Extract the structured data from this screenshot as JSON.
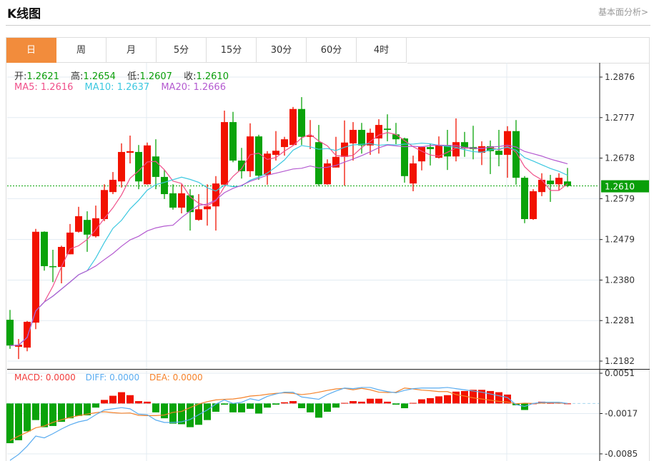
{
  "header": {
    "title": "K线图",
    "link": "基本面分析>"
  },
  "tabs": [
    {
      "label": "日",
      "active": true
    },
    {
      "label": "周"
    },
    {
      "label": "月"
    },
    {
      "label": "5分"
    },
    {
      "label": "15分"
    },
    {
      "label": "30分"
    },
    {
      "label": "60分"
    },
    {
      "label": "4时"
    }
  ],
  "ohlc_info": {
    "open_label": "开:",
    "open": "1.2621",
    "high_label": "高:",
    "high": "1.2654",
    "low_label": "低:",
    "low": "1.2607",
    "close_label": "收:",
    "close": "1.2610"
  },
  "ma_info": {
    "ma5": "MA5: 1.2616",
    "ma10": "MA10: 1.2637",
    "ma20": "MA20: 1.2666"
  },
  "macd_info": {
    "macd": "MACD: 0.0000",
    "diff": "DIFF: 0.0000",
    "dea": "DEA: 0.0000"
  },
  "colors": {
    "up": "#f21200",
    "down": "#0aa30a",
    "ma5": "#f0508a",
    "ma10": "#3cc8e0",
    "ma20": "#b45ad0",
    "diff": "#5aacf0",
    "dea": "#f5822a",
    "tab_active": "#f28c3c"
  },
  "chart_data": [
    {
      "type": "candlestick",
      "title": "K线图",
      "y_ticks": [
        "1.2876",
        "1.2777",
        "1.2678",
        "1.2579",
        "1.2479",
        "1.2380",
        "1.2281",
        "1.2182"
      ],
      "ylim": [
        1.2182,
        1.2876
      ],
      "last_price": "1.2610",
      "grid": true,
      "ohlc": [
        [
          1.2283,
          1.2307,
          1.2212,
          1.222
        ],
        [
          1.2217,
          1.2236,
          1.2187,
          1.2222
        ],
        [
          1.2215,
          1.228,
          1.2206,
          1.2278
        ],
        [
          1.2276,
          1.2505,
          1.226,
          1.2498
        ],
        [
          1.2498,
          1.2499,
          1.2403,
          1.2414
        ],
        [
          1.2414,
          1.2454,
          1.2375,
          1.2412
        ],
        [
          1.2412,
          1.2464,
          1.2372,
          1.2461
        ],
        [
          1.2443,
          1.2517,
          1.2443,
          1.2496
        ],
        [
          1.2498,
          1.2559,
          1.2496,
          1.2536
        ],
        [
          1.2527,
          1.2548,
          1.2449,
          1.2491
        ],
        [
          1.2487,
          1.2562,
          1.2484,
          1.2531
        ],
        [
          1.2529,
          1.2614,
          1.2524,
          1.26
        ],
        [
          1.2595,
          1.2644,
          1.259,
          1.2625
        ],
        [
          1.2621,
          1.2714,
          1.2606,
          1.2693
        ],
        [
          1.2691,
          1.2733,
          1.2665,
          1.2695
        ],
        [
          1.2693,
          1.271,
          1.2602,
          1.2621
        ],
        [
          1.2614,
          1.2716,
          1.2613,
          1.2709
        ],
        [
          1.2682,
          1.2724,
          1.2602,
          1.2632
        ],
        [
          1.2632,
          1.2649,
          1.2578,
          1.259
        ],
        [
          1.2592,
          1.2614,
          1.2552,
          1.2557
        ],
        [
          1.2557,
          1.2614,
          1.2543,
          1.2592
        ],
        [
          1.2587,
          1.2602,
          1.2501,
          1.2546
        ],
        [
          1.2527,
          1.259,
          1.2525,
          1.2553
        ],
        [
          1.2553,
          1.2614,
          1.2513,
          1.256
        ],
        [
          1.256,
          1.2634,
          1.2501,
          1.2616
        ],
        [
          1.2613,
          1.2794,
          1.2613,
          1.2766
        ],
        [
          1.2766,
          1.2791,
          1.2668,
          1.2672
        ],
        [
          1.2672,
          1.2703,
          1.2628,
          1.2646
        ],
        [
          1.2646,
          1.2763,
          1.2632,
          1.2731
        ],
        [
          1.2731,
          1.2735,
          1.2625,
          1.2635
        ],
        [
          1.2637,
          1.2695,
          1.2613,
          1.2689
        ],
        [
          1.2686,
          1.2744,
          1.2672,
          1.2696
        ],
        [
          1.2705,
          1.273,
          1.2684,
          1.2724
        ],
        [
          1.271,
          1.2803,
          1.271,
          1.2798
        ],
        [
          1.2798,
          1.2827,
          1.271,
          1.273
        ],
        [
          1.273,
          1.2771,
          1.27,
          1.2733
        ],
        [
          1.2717,
          1.2759,
          1.2609,
          1.2614
        ],
        [
          1.2614,
          1.2675,
          1.2613,
          1.2665
        ],
        [
          1.2655,
          1.273,
          1.2655,
          1.2681
        ],
        [
          1.2681,
          1.277,
          1.2611,
          1.2716
        ],
        [
          1.2714,
          1.2766,
          1.2672,
          1.2747
        ],
        [
          1.2747,
          1.2764,
          1.2689,
          1.2709
        ],
        [
          1.2709,
          1.275,
          1.2686,
          1.274
        ],
        [
          1.2726,
          1.2773,
          1.2689,
          1.2759
        ],
        [
          1.275,
          1.2785,
          1.2719,
          1.2747
        ],
        [
          1.2736,
          1.2764,
          1.2712,
          1.2724
        ],
        [
          1.2726,
          1.2728,
          1.2618,
          1.2634
        ],
        [
          1.2616,
          1.2684,
          1.2597,
          1.2665
        ],
        [
          1.267,
          1.2707,
          1.2648,
          1.2705
        ],
        [
          1.2705,
          1.2714,
          1.266,
          1.27
        ],
        [
          1.2679,
          1.2731,
          1.2677,
          1.2709
        ],
        [
          1.2709,
          1.2747,
          1.2649,
          1.2682
        ],
        [
          1.2682,
          1.2775,
          1.267,
          1.2717
        ],
        [
          1.2717,
          1.2742,
          1.2681,
          1.2703
        ],
        [
          1.2705,
          1.2757,
          1.2675,
          1.27
        ],
        [
          1.2691,
          1.2719,
          1.2661,
          1.2707
        ],
        [
          1.2707,
          1.2721,
          1.2639,
          1.2695
        ],
        [
          1.2696,
          1.2747,
          1.2658,
          1.2686
        ],
        [
          1.2686,
          1.2756,
          1.263,
          1.2744
        ],
        [
          1.2744,
          1.2771,
          1.2613,
          1.263
        ],
        [
          1.263,
          1.2634,
          1.2519,
          1.2529
        ],
        [
          1.2529,
          1.2602,
          1.2527,
          1.2597
        ],
        [
          1.2595,
          1.2641,
          1.2585,
          1.2625
        ],
        [
          1.2623,
          1.2637,
          1.2571,
          1.2614
        ],
        [
          1.2614,
          1.2641,
          1.2599,
          1.263
        ],
        [
          1.2621,
          1.2654,
          1.2607,
          1.261
        ]
      ],
      "ma_periods": [
        5,
        10,
        20
      ]
    },
    {
      "type": "macd",
      "y_ticks": [
        "0.0051",
        "-0.0017",
        "-0.0085"
      ],
      "ylim": [
        -0.0085,
        0.0051
      ],
      "macd": [
        -0.0067,
        -0.0062,
        -0.0047,
        -0.0028,
        -0.004,
        -0.0038,
        -0.0031,
        -0.0025,
        -0.0021,
        -0.002,
        -0.0007,
        0.0006,
        0.0013,
        0.0019,
        0.0014,
        0.0004,
        0.0003,
        -0.0015,
        -0.0025,
        -0.0034,
        -0.0035,
        -0.004,
        -0.0036,
        -0.0028,
        -0.0014,
        -0.0002,
        -0.0015,
        -0.0015,
        -0.0009,
        -0.0017,
        -0.0007,
        -0.0002,
        0.0002,
        0.0004,
        -0.0008,
        -0.0015,
        -0.0024,
        -0.0014,
        -0.0007,
        0.0001,
        0.0004,
        0.0003,
        0.0008,
        0.0008,
        0.0003,
        -0.0002,
        -0.0008,
        0.0001,
        0.0007,
        0.0009,
        0.0012,
        0.0014,
        0.002,
        0.0021,
        0.0023,
        0.0023,
        0.0021,
        0.0019,
        0.0015,
        -0.0003,
        -0.0011,
        0.0,
        0.0003,
        0.0001,
        0.0002,
        0.0
      ],
      "diff": [
        -0.0096,
        -0.0086,
        -0.0072,
        -0.0055,
        -0.0058,
        -0.0051,
        -0.0043,
        -0.0036,
        -0.0031,
        -0.0028,
        -0.0019,
        -0.0011,
        -0.0009,
        -0.0007,
        -0.0009,
        -0.0018,
        -0.0019,
        -0.0028,
        -0.0032,
        -0.0032,
        -0.0031,
        -0.0027,
        -0.0019,
        -0.0011,
        -0.0001,
        0.0006,
        0.0,
        0.0002,
        0.0008,
        0.0005,
        0.0012,
        0.0016,
        0.0019,
        0.0019,
        0.0011,
        0.0009,
        0.0007,
        0.0015,
        0.0021,
        0.0026,
        0.0025,
        0.0027,
        0.0027,
        0.0023,
        0.002,
        0.0018,
        0.0022,
        0.0025,
        0.0026,
        0.0026,
        0.0026,
        0.0027,
        0.0025,
        0.0023,
        0.0021,
        0.0019,
        0.0016,
        0.0013,
        0.001,
        -0.0002,
        -0.0005,
        0.0,
        0.0002,
        0.0002,
        0.0002,
        0.0
      ]
    }
  ]
}
